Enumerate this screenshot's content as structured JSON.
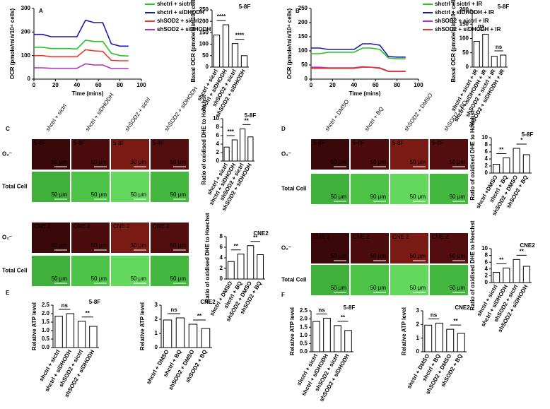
{
  "panel_labels": [
    "A",
    "B",
    "C",
    "D",
    "E",
    "F"
  ],
  "micrographs": [
    {
      "columns": [
        "shctrl + sictrl",
        "shctrl + siDHODH",
        "shSOD2 + sictrl",
        "shSOD2 + siDHODH"
      ],
      "rows": [
        "O₂⁻",
        "Total Cell"
      ],
      "tags": [
        "5-8F",
        "CNE 2"
      ],
      "scale": "50 μm"
    },
    {
      "columns": [
        "shctrl + DMSO",
        "shctrl + BQ",
        "shSOD2 + DMSO",
        "shSOD2 + BQ"
      ],
      "rows": [
        "O₂⁻",
        "Total Cell"
      ],
      "tags": [
        "5-8F",
        "CNE 2"
      ],
      "scale": "50 μm"
    }
  ],
  "chart_data": [
    {
      "type": "line",
      "xlabel": "Time (mins)",
      "ylabel": "OCR (pmole/min/10⁴ cells)",
      "x": [
        0,
        8,
        16,
        24,
        32,
        40,
        48,
        56,
        64,
        72,
        80,
        88
      ],
      "xlim": [
        0,
        100
      ],
      "xticks": [
        0,
        20,
        40,
        60,
        80,
        100
      ],
      "ylim": [
        0,
        300
      ],
      "yticks": [
        0,
        100,
        200,
        300
      ],
      "series": [
        {
          "name": "shctrl + sictrl",
          "color": "#22c422",
          "values": [
            135,
            135,
            130,
            130,
            130,
            128,
            165,
            160,
            160,
            110,
            100,
            98
          ]
        },
        {
          "name": "shctrl + siDHODH",
          "color": "#1a1aa8",
          "values": [
            190,
            190,
            180,
            180,
            180,
            180,
            250,
            240,
            240,
            150,
            140,
            140
          ]
        },
        {
          "name": "shSOD2 + sictrl",
          "color": "#e8382a",
          "values": [
            100,
            100,
            95,
            95,
            95,
            95,
            125,
            120,
            118,
            80,
            78,
            78
          ]
        },
        {
          "name": "shSOD2 + siDHODH",
          "color": "#b030c0",
          "values": [
            48,
            48,
            46,
            46,
            46,
            46,
            65,
            60,
            60,
            45,
            45,
            45
          ]
        }
      ]
    },
    {
      "type": "bar",
      "title": "5-8F",
      "ylabel": "Basal OCR (pmole/min/10⁴ cells)",
      "color": "#ffffff",
      "sig_color": "#1a1aa8",
      "categories": [
        "shctrl + sictrl",
        "shctrl + siDHODH",
        "shSOD2 + sictrl",
        "shSOD2 + siDHODH"
      ],
      "values": [
        140,
        185,
        103,
        50
      ],
      "significance": [
        "****",
        "****"
      ],
      "ylim": [
        0,
        250
      ],
      "yticks": [
        0,
        50,
        100,
        150,
        200,
        250
      ]
    },
    {
      "type": "line",
      "xlabel": "Time (mins)",
      "ylabel": "OCR (pmole/min/10⁴ cells)",
      "x": [
        0,
        8,
        16,
        24,
        32,
        40,
        48,
        56,
        64,
        72,
        80,
        88
      ],
      "xlim": [
        0,
        100
      ],
      "xticks": [
        0,
        20,
        40,
        60,
        80,
        100
      ],
      "ylim": [
        0,
        250
      ],
      "yticks": [
        0,
        50,
        100,
        150,
        200,
        250
      ],
      "series": [
        {
          "name": "shctrl + sictrl + IR",
          "color": "#22c422",
          "values": [
            90,
            90,
            95,
            95,
            95,
            95,
            110,
            110,
            105,
            75,
            72,
            72
          ]
        },
        {
          "name": "shctrl + siDHODH + IR",
          "color": "#1a1aa8",
          "values": [
            110,
            110,
            105,
            105,
            105,
            105,
            125,
            125,
            120,
            80,
            78,
            78
          ]
        },
        {
          "name": "shSOD2 + sictrl + IR",
          "color": "#b030c0",
          "values": [
            42,
            42,
            40,
            40,
            40,
            40,
            44,
            42,
            40,
            28,
            28,
            28
          ]
        },
        {
          "name": "shSOD2 + siDHODH + IR",
          "color": "#e8382a",
          "values": [
            38,
            38,
            38,
            38,
            38,
            38,
            42,
            42,
            38,
            27,
            27,
            27
          ]
        }
      ]
    },
    {
      "type": "bar",
      "title": "5-8F",
      "ylabel": "Basal OCR (pmole/min/10⁴ cells)",
      "color": "#ffffff",
      "sig_color": "#1a1aa8",
      "categories": [
        "shctrl + sictrl + IR",
        "shctrl + siDHODH + IR",
        "shSOD2 + sictrl + IR",
        "shSOD2 + siDHODH + IR"
      ],
      "values": [
        90,
        115,
        38,
        42
      ],
      "significance": [
        "ns",
        "ns"
      ],
      "ylim": [
        0,
        200
      ],
      "yticks": [
        0,
        50,
        100,
        150,
        200
      ]
    },
    {
      "type": "bar",
      "title": "5-8F",
      "ylabel": "Ratio of oxidised DHE to Hoechst",
      "color": "#ffffff",
      "sig_color": "#1a1aa8",
      "categories": [
        "shctrl + sictrl",
        "shctrl + siDHODH",
        "shSOD2 + sictrl",
        "shSOD2 + siDHODH"
      ],
      "values": [
        3.3,
        5,
        7.6,
        5.7
      ],
      "significance": [
        "***",
        "**"
      ],
      "ylim": [
        0,
        10
      ],
      "yticks": [
        0,
        2,
        4,
        6,
        8,
        10
      ]
    },
    {
      "type": "bar",
      "title": "CNE2",
      "ylabel": "Ratio of oxidised DHE to Hoechst",
      "color": "#ffffff",
      "sig_color": "#1a1aa8",
      "categories": [
        "shctrl + DMSO",
        "shctrl + BQ",
        "shSOD2 + DMSO",
        "shSOD2 + BQ"
      ],
      "values": [
        3.3,
        4.7,
        6.3,
        4.6
      ],
      "significance": [
        "**",
        "**"
      ],
      "ylim": [
        0,
        8
      ],
      "yticks": [
        0,
        2,
        4,
        6,
        8
      ]
    },
    {
      "type": "bar",
      "title": "5-8F",
      "ylabel": "Ratio of oxidised DHE to Hoechst",
      "color": "#ffffff",
      "sig_color": "#1a1aa8",
      "categories": [
        "shctrl +DMSO",
        "shctrl + BQ",
        "shSOD2 + DMSO",
        "shSOD2 + BQ"
      ],
      "values": [
        2.5,
        4.3,
        7,
        5.2
      ],
      "significance": [
        "**",
        "*"
      ],
      "ylim": [
        0,
        10
      ],
      "yticks": [
        0,
        2,
        4,
        6,
        8,
        10
      ]
    },
    {
      "type": "bar",
      "title": "CNE2",
      "ylabel": "Ratio of oxidised DHE to Hoechst",
      "color": "#ffffff",
      "sig_color": "#1a1aa8",
      "categories": [
        "shctrl + sictrl",
        "shctrl + siDHODH",
        "shSOD2 + sictrl",
        "shSOD2 + siDHODH"
      ],
      "values": [
        3,
        4.3,
        6.8,
        4.8
      ],
      "significance": [
        "**",
        "**"
      ],
      "ylim": [
        0,
        10
      ],
      "yticks": [
        0,
        2,
        4,
        6,
        8,
        10
      ]
    },
    {
      "type": "bar",
      "title": "5-8F",
      "ylabel": "Relative ATP level",
      "color": "#ffffff",
      "sig_color": "#1a1aa8",
      "categories": [
        "shctrl + sictrl",
        "shctrl + siDHODH",
        "shSOD2 + sictrl",
        "shSOD2 + siDHODH"
      ],
      "values": [
        1.85,
        2,
        1.55,
        1.25
      ],
      "significance": [
        "ns",
        "**"
      ],
      "ylim": [
        0,
        2.5
      ],
      "yticks": [
        {
          "value": 0,
          "label": "0.0"
        },
        0.5,
        {
          "value": 1,
          "label": "1.0"
        },
        1.5,
        {
          "value": 2,
          "label": "2.0"
        },
        2.5
      ]
    },
    {
      "type": "bar",
      "title": "CNE2",
      "ylabel": "Relative ATP level",
      "color": "#ffffff",
      "sig_color": "#1a1aa8",
      "categories": [
        "shctrl + DMSO",
        "shctrl + BQ",
        "shSOD2 + DMSO",
        "shSOD2 + BQ"
      ],
      "values": [
        1.95,
        2.1,
        1.65,
        1.35
      ],
      "significance": [
        "ns",
        "**"
      ],
      "ylim": [
        0,
        3
      ],
      "yticks": [
        0,
        1,
        2,
        3
      ]
    },
    {
      "type": "bar",
      "title": "5-8F",
      "ylabel": "Relative ATP level",
      "color": "#ffffff",
      "sig_color": "#1a1aa8",
      "categories": [
        "shctrl + sictrl",
        "shctrl + siDHODH",
        "shSOD2 + sictrl",
        "shSOD2 + siDHODH"
      ],
      "values": [
        1.85,
        2.05,
        1.6,
        1.3
      ],
      "significance": [
        "ns",
        "**"
      ],
      "ylim": [
        0,
        2.5
      ],
      "yticks": [
        {
          "value": 0,
          "label": "0.0"
        },
        0.5,
        {
          "value": 1,
          "label": "1.0"
        },
        1.5,
        {
          "value": 2,
          "label": "2.0"
        },
        2.5
      ]
    },
    {
      "type": "bar",
      "title": "CNE2",
      "ylabel": "Relative ATP level",
      "color": "#ffffff",
      "sig_color": "#1a1aa8",
      "categories": [
        "shctrl + DMSO",
        "shctrl + BQ",
        "shSOD2 + DMSO",
        "shSOD2 + BQ"
      ],
      "values": [
        1.95,
        2.1,
        1.65,
        1.35
      ],
      "significance": [
        "ns",
        "**"
      ],
      "ylim": [
        0,
        3
      ],
      "yticks": [
        0,
        1,
        2,
        3
      ]
    }
  ]
}
